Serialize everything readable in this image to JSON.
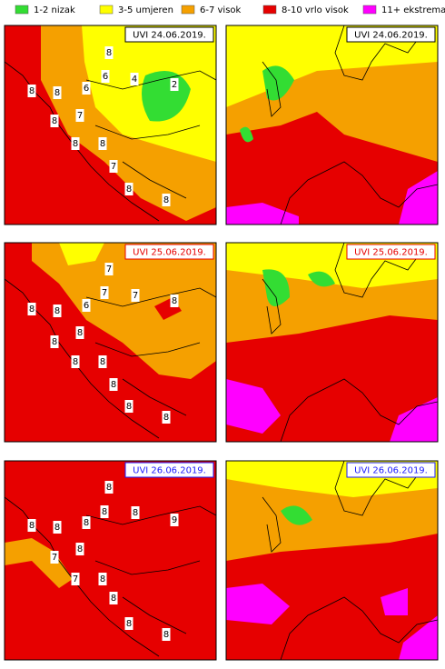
{
  "legend": [
    {
      "label": "1-2 nizak",
      "color": "#33dd33"
    },
    {
      "label": "3-5 umjeren",
      "color": "#ffff00"
    },
    {
      "label": "6-7 visok",
      "color": "#f5a000"
    },
    {
      "label": "8-10 vrlo visok",
      "color": "#e60000"
    },
    {
      "label": "11+ ekstreman",
      "color": "#ff00ff"
    }
  ],
  "panels": [
    {
      "date": "UVI  24.06.2019.",
      "date_color": "#000000",
      "labels": [
        "8",
        "6",
        "4",
        "2",
        "6",
        "8",
        "8",
        "7",
        "8",
        "8",
        "8",
        "7",
        "8",
        "8"
      ]
    },
    {
      "date": "UVI  25.06.2019.",
      "date_color": "#e60000",
      "labels": [
        "7",
        "7",
        "7",
        "6",
        "8",
        "8",
        "8",
        "8",
        "8",
        "8",
        "8",
        "8",
        "8",
        "8"
      ]
    },
    {
      "date": "UVI  26.06.2019.",
      "date_color": "#1a1aff",
      "labels": [
        "8",
        "8",
        "8",
        "9",
        "8",
        "8",
        "8",
        "7",
        "8",
        "7",
        "8",
        "8",
        "8",
        "8"
      ]
    }
  ]
}
